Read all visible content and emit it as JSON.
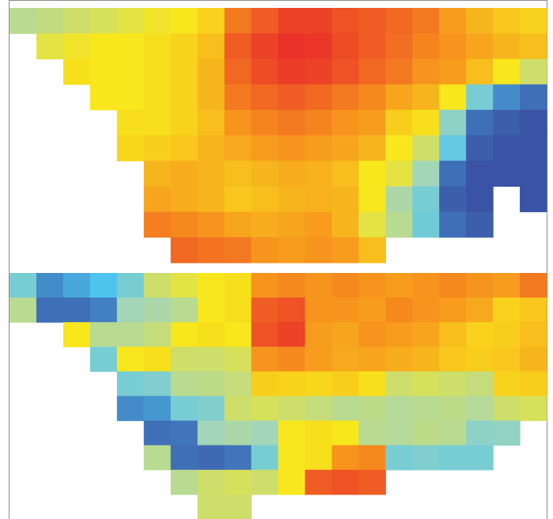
{
  "chart_data": [
    {
      "type": "heatmap",
      "color_scale": [
        "#3a53a4",
        "#4dc4ee",
        "#a3d5b8",
        "#f8e71c",
        "#f7941d",
        "#e8262a"
      ],
      "clim": [
        0,
        1
      ],
      "values": [
        [
          0.45,
          0.47,
          0.5,
          0.52,
          0.55,
          0.58,
          0.6,
          0.65,
          0.85,
          0.9,
          0.95,
          0.95,
          0.92,
          0.9,
          0.88,
          0.85,
          0.78,
          0.72,
          0.68,
          0.65
        ],
        [
          null,
          0.55,
          0.58,
          0.6,
          0.6,
          0.62,
          0.65,
          0.7,
          0.9,
          0.95,
          0.98,
          0.97,
          0.93,
          0.9,
          0.87,
          0.83,
          0.8,
          0.76,
          0.72,
          0.7
        ],
        [
          null,
          null,
          0.62,
          0.6,
          0.6,
          0.62,
          0.65,
          0.72,
          0.88,
          0.93,
          0.96,
          0.95,
          0.92,
          0.88,
          0.85,
          0.8,
          0.78,
          0.7,
          0.6,
          0.5
        ],
        [
          null,
          null,
          null,
          0.6,
          0.6,
          0.62,
          0.65,
          0.72,
          0.85,
          0.88,
          0.9,
          0.88,
          0.85,
          0.82,
          0.76,
          0.72,
          0.6,
          0.3,
          0.1,
          0.05
        ],
        [
          null,
          null,
          null,
          null,
          0.62,
          0.62,
          0.65,
          0.7,
          0.8,
          0.83,
          0.85,
          0.83,
          0.8,
          0.78,
          0.66,
          0.62,
          0.35,
          0.05,
          0.02,
          0
        ],
        [
          null,
          null,
          null,
          null,
          0.64,
          0.66,
          0.68,
          0.72,
          0.75,
          0.78,
          0.8,
          0.78,
          0.76,
          0.72,
          0.6,
          0.5,
          0.25,
          0.02,
          0,
          0
        ],
        [
          null,
          null,
          null,
          null,
          null,
          0.72,
          0.74,
          0.72,
          0.7,
          0.72,
          0.74,
          0.73,
          0.7,
          0.6,
          0.55,
          0.4,
          0.05,
          0,
          0,
          0
        ],
        [
          null,
          null,
          null,
          null,
          null,
          0.76,
          0.74,
          0.72,
          0.68,
          0.7,
          0.72,
          0.73,
          0.72,
          0.6,
          0.42,
          0.3,
          0.02,
          0,
          null,
          0
        ],
        [
          null,
          null,
          null,
          null,
          null,
          0.84,
          0.82,
          0.8,
          0.76,
          0.74,
          0.76,
          0.78,
          0.72,
          0.55,
          0.45,
          0.28,
          0.05,
          0.02,
          null,
          null
        ],
        [
          null,
          null,
          null,
          null,
          null,
          null,
          0.88,
          0.86,
          0.85,
          0.8,
          0.78,
          0.8,
          0.78,
          0.7,
          null,
          null,
          null,
          null,
          null,
          null
        ]
      ]
    },
    {
      "type": "heatmap",
      "color_scale": [
        "#3a53a4",
        "#4dc4ee",
        "#a3d5b8",
        "#f8e71c",
        "#f7941d",
        "#e8262a"
      ],
      "clim": [
        0,
        1
      ],
      "values": [
        [
          0.3,
          0.1,
          0.15,
          0.2,
          0.3,
          0.5,
          0.55,
          0.6,
          0.62,
          0.8,
          0.82,
          0.8,
          0.82,
          0.8,
          0.78,
          0.8,
          0.82,
          0.8,
          0.78,
          0.85
        ],
        [
          0.45,
          0.05,
          0.05,
          0.08,
          0.4,
          0.42,
          0.45,
          0.6,
          0.62,
          0.9,
          0.92,
          0.8,
          0.8,
          0.78,
          0.82,
          0.8,
          0.78,
          0.75,
          0.65,
          0.68
        ],
        [
          null,
          null,
          0.6,
          0.45,
          0.45,
          0.48,
          0.6,
          0.62,
          0.6,
          0.92,
          0.95,
          0.78,
          0.76,
          0.8,
          0.78,
          0.76,
          0.7,
          0.65,
          0.66,
          0.7
        ],
        [
          null,
          null,
          null,
          0.3,
          0.6,
          0.62,
          0.5,
          0.5,
          0.52,
          0.8,
          0.82,
          0.78,
          0.75,
          0.76,
          0.74,
          0.72,
          0.68,
          0.66,
          0.68,
          0.72
        ],
        [
          null,
          null,
          null,
          null,
          0.3,
          0.32,
          0.45,
          0.46,
          0.48,
          0.66,
          0.65,
          0.64,
          0.66,
          0.62,
          0.5,
          0.52,
          0.5,
          0.48,
          0.65,
          0.66
        ],
        [
          null,
          null,
          null,
          null,
          0.1,
          0.12,
          0.3,
          0.32,
          0.5,
          0.52,
          0.5,
          0.48,
          0.45,
          0.46,
          0.44,
          0.45,
          0.46,
          0.44,
          0.5,
          0.52
        ],
        [
          null,
          null,
          null,
          null,
          null,
          0.05,
          0.06,
          0.4,
          0.42,
          0.4,
          0.6,
          0.62,
          0.6,
          0.45,
          0.44,
          0.46,
          0.45,
          0.35,
          0.36,
          null
        ],
        [
          null,
          null,
          null,
          null,
          null,
          0.45,
          0.05,
          0.04,
          0.06,
          0.3,
          0.6,
          0.62,
          0.8,
          0.82,
          0.3,
          0.32,
          0.3,
          0.3,
          null,
          null
        ],
        [
          null,
          null,
          null,
          null,
          null,
          null,
          0.45,
          0.5,
          0.52,
          0.5,
          0.6,
          0.9,
          0.92,
          0.9,
          null,
          null,
          null,
          null,
          null,
          null
        ],
        [
          null,
          null,
          null,
          null,
          null,
          null,
          null,
          0.5,
          0.5,
          null,
          null,
          null,
          null,
          null,
          null,
          null,
          null,
          null,
          null,
          null
        ]
      ]
    }
  ]
}
